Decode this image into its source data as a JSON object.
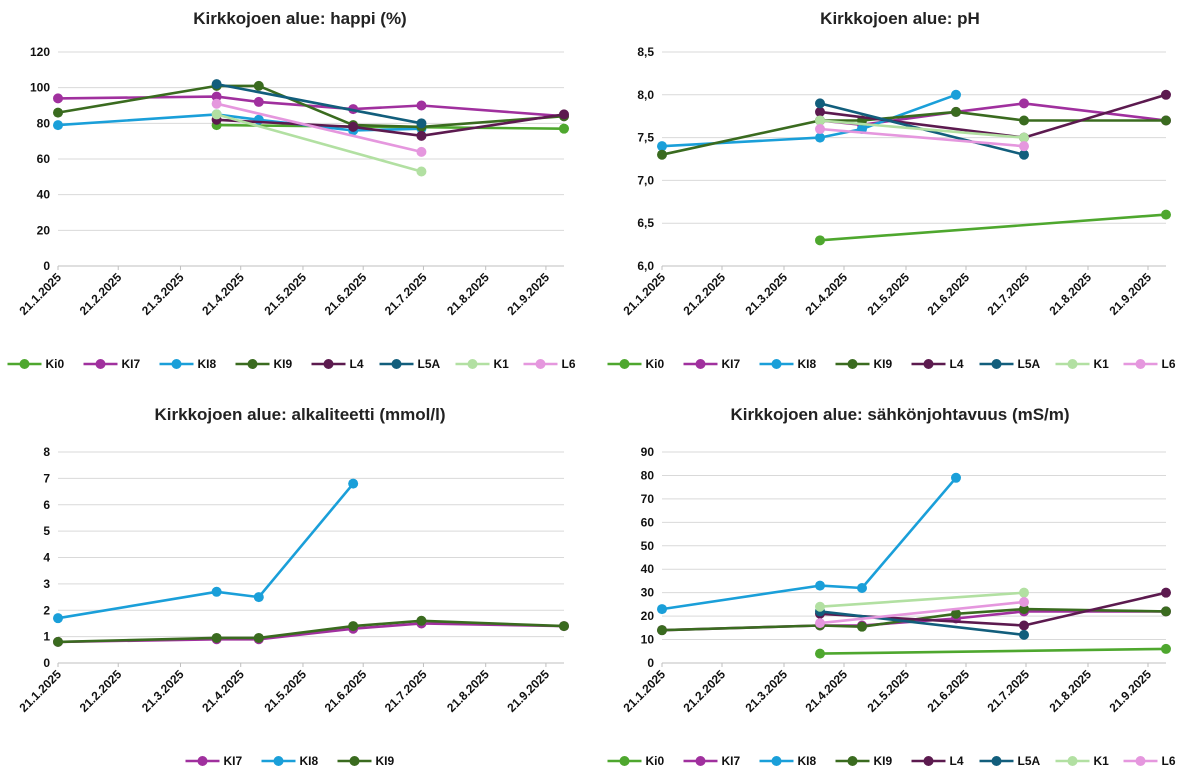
{
  "chart_data": [
    {
      "type": "line",
      "title": "Kirkkojoen alue: happi (%)",
      "ylabel": "",
      "xlabel": "",
      "ylim": [
        0,
        120
      ],
      "yticks": [
        0,
        20,
        40,
        60,
        80,
        100,
        120
      ],
      "ydecimals": 0,
      "x_tick_labels": [
        "21.1.2025",
        "21.2.2025",
        "21.3.2025",
        "21.4.2025",
        "21.5.2025",
        "21.6.2025",
        "21.7.2025",
        "21.8.2025",
        "21.9.2025"
      ],
      "xlim": [
        "2025-01-21",
        "2025-09-30"
      ],
      "grid": true,
      "legend": "bottom",
      "series": [
        {
          "name": "Ki0",
          "color": "#4ea72e",
          "points": [
            [
              "2025-04-10",
              79
            ],
            [
              "2025-09-30",
              77
            ]
          ]
        },
        {
          "name": "KI7",
          "color": "#a0309e",
          "points": [
            [
              "2025-01-21",
              94
            ],
            [
              "2025-04-10",
              95
            ],
            [
              "2025-05-01",
              92
            ],
            [
              "2025-06-17",
              88
            ],
            [
              "2025-07-21",
              90
            ],
            [
              "2025-09-30",
              84
            ]
          ]
        },
        {
          "name": "KI8",
          "color": "#1a9fd9",
          "points": [
            [
              "2025-01-21",
              79
            ],
            [
              "2025-04-10",
              85
            ],
            [
              "2025-05-01",
              82
            ],
            [
              "2025-06-17",
              76
            ],
            [
              "2025-07-21",
              77
            ]
          ]
        },
        {
          "name": "KI9",
          "color": "#3a6b1f",
          "points": [
            [
              "2025-01-21",
              86
            ],
            [
              "2025-04-10",
              101
            ],
            [
              "2025-05-01",
              101
            ],
            [
              "2025-06-17",
              79
            ],
            [
              "2025-07-21",
              78
            ],
            [
              "2025-09-30",
              84
            ]
          ]
        },
        {
          "name": "L4",
          "color": "#5c1a4f",
          "points": [
            [
              "2025-04-10",
              82
            ],
            [
              "2025-06-17",
              78
            ],
            [
              "2025-07-21",
              73
            ],
            [
              "2025-09-30",
              85
            ]
          ]
        },
        {
          "name": "L5A",
          "color": "#125e7c",
          "points": [
            [
              "2025-04-10",
              102
            ],
            [
              "2025-07-21",
              80
            ]
          ]
        },
        {
          "name": "K1",
          "color": "#b2e0a2",
          "points": [
            [
              "2025-04-10",
              85
            ],
            [
              "2025-07-21",
              53
            ]
          ]
        },
        {
          "name": "L6",
          "color": "#e597de",
          "points": [
            [
              "2025-04-10",
              91
            ],
            [
              "2025-07-21",
              64
            ]
          ]
        }
      ]
    },
    {
      "type": "line",
      "title": "Kirkkojoen alue: pH",
      "ylabel": "",
      "xlabel": "",
      "ylim": [
        6.0,
        8.5
      ],
      "yticks": [
        6.0,
        6.5,
        7.0,
        7.5,
        8.0,
        8.5
      ],
      "ydecimals": 1,
      "x_tick_labels": [
        "21.1.2025",
        "21.2.2025",
        "21.3.2025",
        "21.4.2025",
        "21.5.2025",
        "21.6.2025",
        "21.7.2025",
        "21.8.2025",
        "21.9.2025"
      ],
      "xlim": [
        "2025-01-21",
        "2025-09-30"
      ],
      "grid": true,
      "legend": "bottom",
      "series": [
        {
          "name": "Ki0",
          "color": "#4ea72e",
          "points": [
            [
              "2025-04-10",
              6.3
            ],
            [
              "2025-09-30",
              6.6
            ]
          ]
        },
        {
          "name": "KI7",
          "color": "#a0309e",
          "points": [
            [
              "2025-04-10",
              7.7
            ],
            [
              "2025-05-01",
              7.65
            ],
            [
              "2025-06-17",
              7.8
            ],
            [
              "2025-07-21",
              7.9
            ],
            [
              "2025-09-30",
              7.7
            ]
          ]
        },
        {
          "name": "KI8",
          "color": "#1a9fd9",
          "points": [
            [
              "2025-01-21",
              7.4
            ],
            [
              "2025-04-10",
              7.5
            ],
            [
              "2025-05-01",
              7.6
            ],
            [
              "2025-06-17",
              8.0
            ]
          ]
        },
        {
          "name": "KI9",
          "color": "#3a6b1f",
          "points": [
            [
              "2025-01-21",
              7.3
            ],
            [
              "2025-04-10",
              7.7
            ],
            [
              "2025-05-01",
              7.7
            ],
            [
              "2025-06-17",
              7.8
            ],
            [
              "2025-07-21",
              7.7
            ],
            [
              "2025-09-30",
              7.7
            ]
          ]
        },
        {
          "name": "L4",
          "color": "#5c1a4f",
          "points": [
            [
              "2025-04-10",
              7.8
            ],
            [
              "2025-07-21",
              7.5
            ],
            [
              "2025-09-30",
              8.0
            ]
          ]
        },
        {
          "name": "L5A",
          "color": "#125e7c",
          "points": [
            [
              "2025-04-10",
              7.9
            ],
            [
              "2025-07-21",
              7.3
            ]
          ]
        },
        {
          "name": "K1",
          "color": "#b2e0a2",
          "points": [
            [
              "2025-04-10",
              7.7
            ],
            [
              "2025-07-21",
              7.5
            ]
          ]
        },
        {
          "name": "L6",
          "color": "#e597de",
          "points": [
            [
              "2025-04-10",
              7.6
            ],
            [
              "2025-07-21",
              7.4
            ]
          ]
        }
      ]
    },
    {
      "type": "line",
      "title": "Kirkkojoen alue: alkaliteetti (mmol/l)",
      "ylabel": "",
      "xlabel": "",
      "ylim": [
        0,
        8
      ],
      "yticks": [
        0,
        1,
        2,
        3,
        4,
        5,
        6,
        7,
        8
      ],
      "ydecimals": 0,
      "x_tick_labels": [
        "21.1.2025",
        "21.2.2025",
        "21.3.2025",
        "21.4.2025",
        "21.5.2025",
        "21.6.2025",
        "21.7.2025",
        "21.8.2025",
        "21.9.2025"
      ],
      "xlim": [
        "2025-01-21",
        "2025-09-30"
      ],
      "grid": true,
      "legend": "bottom",
      "series": [
        {
          "name": "KI7",
          "color": "#a0309e",
          "points": [
            [
              "2025-01-21",
              0.8
            ],
            [
              "2025-04-10",
              0.9
            ],
            [
              "2025-05-01",
              0.9
            ],
            [
              "2025-06-17",
              1.3
            ],
            [
              "2025-07-21",
              1.5
            ],
            [
              "2025-09-30",
              1.4
            ]
          ]
        },
        {
          "name": "KI8",
          "color": "#1a9fd9",
          "points": [
            [
              "2025-01-21",
              1.7
            ],
            [
              "2025-04-10",
              2.7
            ],
            [
              "2025-05-01",
              2.5
            ],
            [
              "2025-06-17",
              6.8
            ]
          ]
        },
        {
          "name": "KI9",
          "color": "#3a6b1f",
          "points": [
            [
              "2025-01-21",
              0.8
            ],
            [
              "2025-04-10",
              0.95
            ],
            [
              "2025-05-01",
              0.95
            ],
            [
              "2025-06-17",
              1.4
            ],
            [
              "2025-07-21",
              1.6
            ],
            [
              "2025-09-30",
              1.4
            ]
          ]
        }
      ]
    },
    {
      "type": "line",
      "title": "Kirkkojoen alue: sähkönjohtavuus (mS/m)",
      "ylabel": "",
      "xlabel": "",
      "ylim": [
        0,
        90
      ],
      "yticks": [
        0,
        10,
        20,
        30,
        40,
        50,
        60,
        70,
        80,
        90
      ],
      "ydecimals": 0,
      "x_tick_labels": [
        "21.1.2025",
        "21.2.2025",
        "21.3.2025",
        "21.4.2025",
        "21.5.2025",
        "21.6.2025",
        "21.7.2025",
        "21.8.2025",
        "21.9.2025"
      ],
      "xlim": [
        "2025-01-21",
        "2025-09-30"
      ],
      "grid": true,
      "legend": "bottom",
      "series": [
        {
          "name": "Ki0",
          "color": "#4ea72e",
          "points": [
            [
              "2025-04-10",
              4
            ],
            [
              "2025-09-30",
              6
            ]
          ]
        },
        {
          "name": "KI7",
          "color": "#a0309e",
          "points": [
            [
              "2025-01-21",
              14
            ],
            [
              "2025-04-10",
              16
            ],
            [
              "2025-05-01",
              16
            ],
            [
              "2025-06-17",
              19
            ],
            [
              "2025-07-21",
              22
            ],
            [
              "2025-09-30",
              22
            ]
          ]
        },
        {
          "name": "KI8",
          "color": "#1a9fd9",
          "points": [
            [
              "2025-01-21",
              23
            ],
            [
              "2025-04-10",
              33
            ],
            [
              "2025-05-01",
              32
            ],
            [
              "2025-06-17",
              79
            ]
          ]
        },
        {
          "name": "KI9",
          "color": "#3a6b1f",
          "points": [
            [
              "2025-01-21",
              14
            ],
            [
              "2025-04-10",
              16
            ],
            [
              "2025-05-01",
              15.5
            ],
            [
              "2025-06-17",
              21
            ],
            [
              "2025-07-21",
              23
            ],
            [
              "2025-09-30",
              22
            ]
          ]
        },
        {
          "name": "L4",
          "color": "#5c1a4f",
          "points": [
            [
              "2025-04-10",
              21
            ],
            [
              "2025-07-21",
              16
            ],
            [
              "2025-09-30",
              30
            ]
          ]
        },
        {
          "name": "L5A",
          "color": "#125e7c",
          "points": [
            [
              "2025-04-10",
              22
            ],
            [
              "2025-07-21",
              12
            ]
          ]
        },
        {
          "name": "K1",
          "color": "#b2e0a2",
          "points": [
            [
              "2025-04-10",
              24
            ],
            [
              "2025-07-21",
              30
            ]
          ]
        },
        {
          "name": "L6",
          "color": "#e597de",
          "points": [
            [
              "2025-04-10",
              17
            ],
            [
              "2025-07-21",
              26
            ]
          ]
        }
      ]
    }
  ]
}
